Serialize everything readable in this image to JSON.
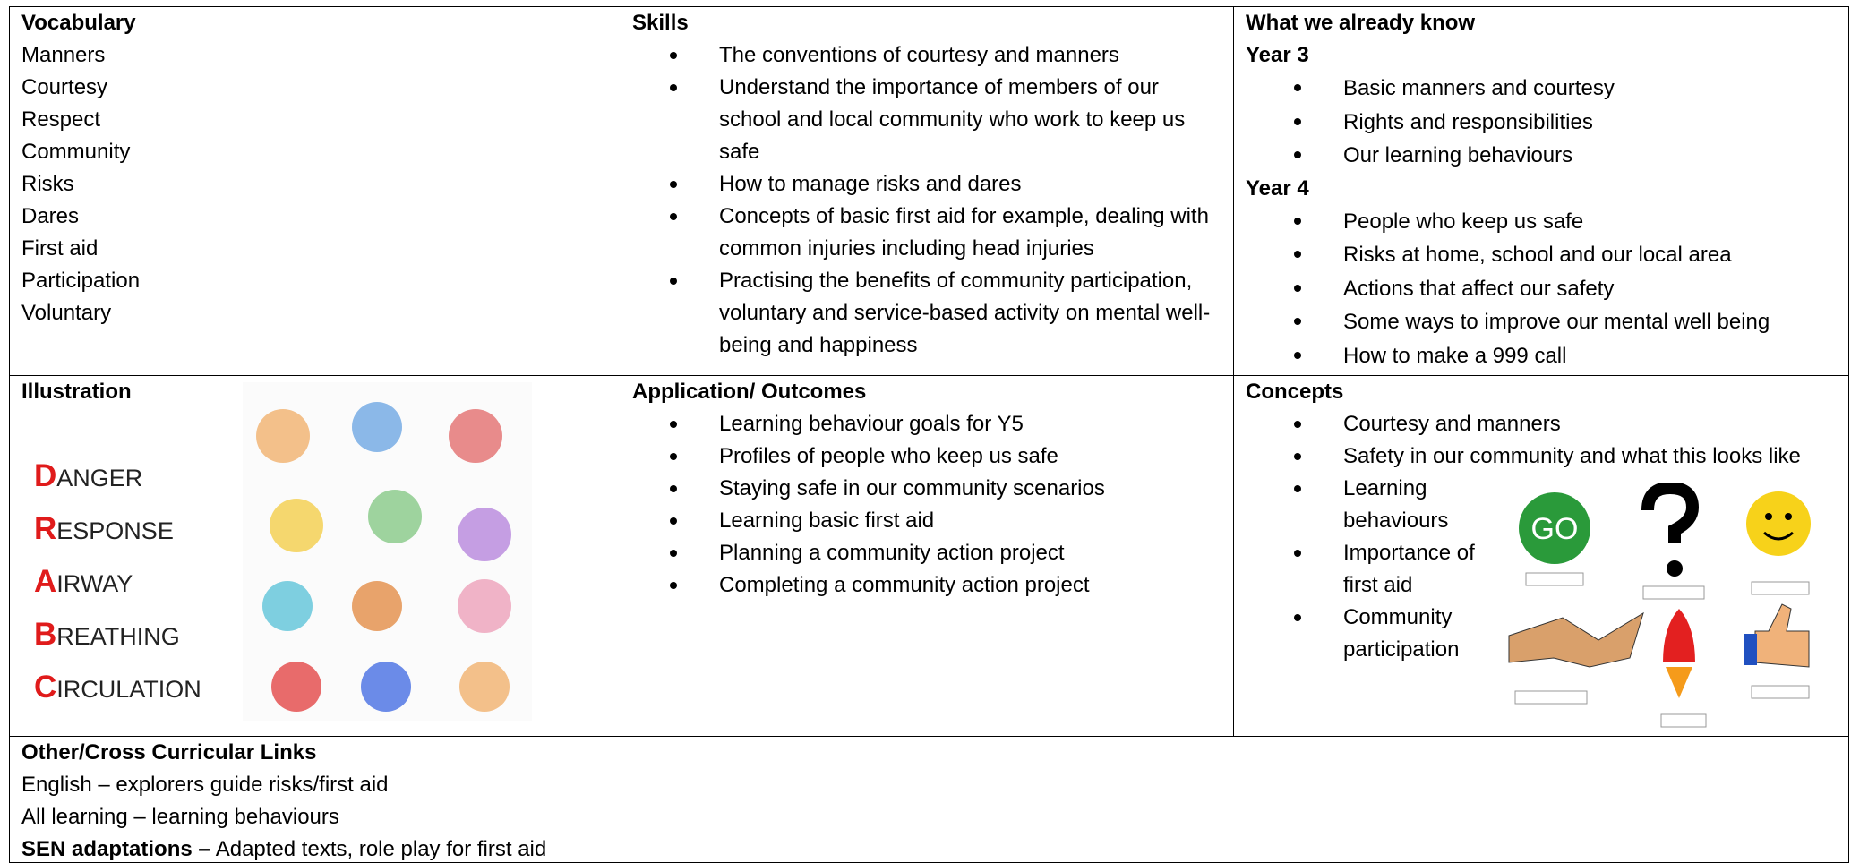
{
  "vocabulary": {
    "heading": "Vocabulary",
    "items": [
      "Manners",
      "Courtesy",
      "Respect",
      "Community",
      "Risks",
      "Dares",
      "First aid",
      "Participation",
      "Voluntary"
    ]
  },
  "skills": {
    "heading": "Skills",
    "items": [
      "The conventions of courtesy and manners",
      "Understand the importance of members of our school and local community who work to keep us safe",
      "How to manage risks and dares",
      "Concepts of basic first aid for example, dealing with common injuries including head injuries",
      "Practising the benefits of community participation, voluntary and service-based activity on mental well-being and happiness"
    ]
  },
  "prior": {
    "heading": "What we already know",
    "groups": [
      {
        "title": "Year 3",
        "items": [
          "Basic manners and courtesy",
          "Rights and responsibilities",
          "Our learning behaviours"
        ]
      },
      {
        "title": "Year 4",
        "items": [
          "People who keep us safe",
          "Risks at home, school and our local area",
          "Actions that affect our safety",
          "Some ways to improve our mental well being",
          "How to make a 999 call"
        ]
      }
    ]
  },
  "illustration": {
    "heading": "Illustration",
    "drabc": [
      "DANGER",
      "RESPONSE",
      "AIRWAY",
      "BREATHING",
      "CIRCULATION"
    ]
  },
  "outcomes": {
    "heading": "Application/ Outcomes",
    "items": [
      "Learning behaviour goals for Y5",
      "Profiles of people who keep us safe",
      "Staying safe in our community scenarios",
      "Learning basic first aid",
      "Planning a community action project",
      "Completing a community action project"
    ]
  },
  "concepts": {
    "heading": "Concepts",
    "items": [
      "Courtesy and manners",
      "Safety in our community and what this looks like",
      "Learning behaviours",
      "Importance of first aid",
      "Community participation"
    ],
    "icon_text": "GO"
  },
  "links": {
    "heading": "Other/Cross Curricular Links",
    "lines": [
      "English – explorers guide risks/first aid",
      "All learning – learning behaviours"
    ],
    "sen_label": "SEN adaptations –",
    "sen_text": "Adapted texts, role play for first aid"
  }
}
